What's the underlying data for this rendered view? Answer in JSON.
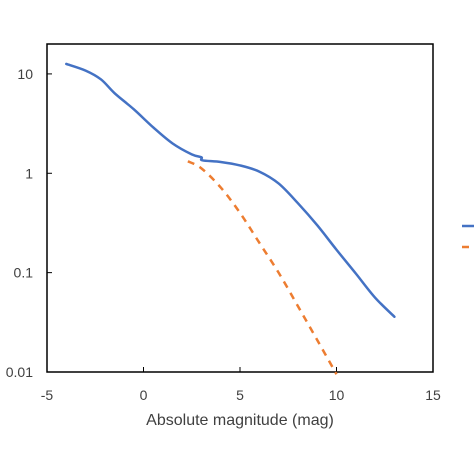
{
  "chart_data": {
    "type": "line",
    "title": "",
    "xlabel": "Absolute magnitude (mag)",
    "ylabel": "",
    "xlim": [
      -5,
      15
    ],
    "ylim": [
      0.01,
      20
    ],
    "yscale": "log",
    "grid": false,
    "xticks": [
      -5,
      0,
      5,
      10,
      15
    ],
    "xtick_labels": [
      "-5",
      "0",
      "5",
      "10",
      "15"
    ],
    "yticks": [
      0.01,
      0.1,
      1,
      10
    ],
    "ytick_labels": [
      "0.01",
      "0.1",
      "1",
      "10"
    ],
    "legend": "right, partially cropped (entries not visible)",
    "series": [
      {
        "color": "#4472C4",
        "style": "solid",
        "points": [
          [
            -4,
            12.6
          ],
          [
            -3,
            10.8
          ],
          [
            -2.2,
            8.8
          ],
          [
            -1.5,
            6.4
          ],
          [
            -0.5,
            4.4
          ],
          [
            0.5,
            2.9
          ],
          [
            1.5,
            2.0
          ],
          [
            2.5,
            1.55
          ],
          [
            3.0,
            1.45
          ],
          [
            3.05,
            1.35
          ],
          [
            4.0,
            1.3
          ],
          [
            5.0,
            1.2
          ],
          [
            6.0,
            1.04
          ],
          [
            7.0,
            0.79
          ],
          [
            8.0,
            0.5
          ],
          [
            9.0,
            0.3
          ],
          [
            10.0,
            0.17
          ],
          [
            11.0,
            0.098
          ],
          [
            12.0,
            0.056
          ],
          [
            13.0,
            0.036
          ]
        ]
      },
      {
        "color": "#ED7D31",
        "style": "dashed",
        "points": [
          [
            2.3,
            1.32
          ],
          [
            3.0,
            1.12
          ],
          [
            4.0,
            0.72
          ],
          [
            5.0,
            0.4
          ],
          [
            6.0,
            0.2
          ],
          [
            7.0,
            0.1
          ],
          [
            8.0,
            0.046
          ],
          [
            9.0,
            0.021
          ],
          [
            10.0,
            0.0095
          ]
        ]
      }
    ]
  }
}
